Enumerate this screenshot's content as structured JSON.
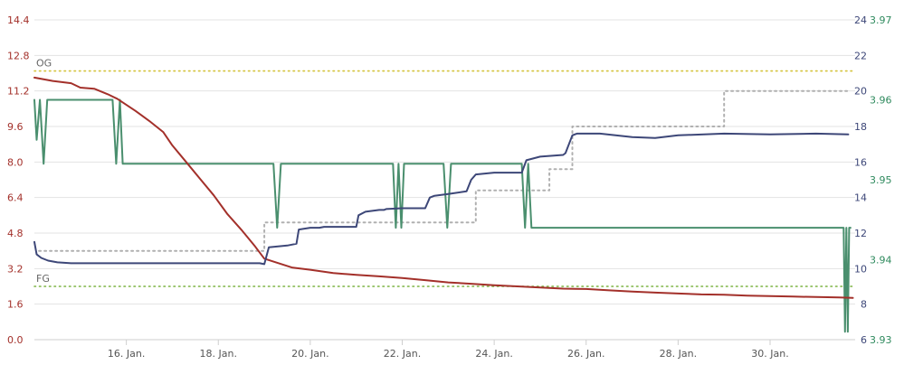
{
  "chart_data": {
    "type": "line",
    "title": "",
    "xlabel": "",
    "ylabel": "",
    "grid": true,
    "x_range": [
      14.0,
      31.85
    ],
    "x_ticks": [
      16,
      18,
      20,
      22,
      24,
      26,
      28,
      30
    ],
    "x_tick_labels": [
      "16. Jan.",
      "18. Jan.",
      "20. Jan.",
      "22. Jan.",
      "24. Jan.",
      "26. Jan.",
      "28. Jan.",
      "30. Jan."
    ],
    "axes": {
      "left": {
        "ylim": [
          0,
          14.4
        ],
        "ticks": [
          "0.0",
          "1.6",
          "3.2",
          "4.8",
          "6.4",
          "8.0",
          "9.6",
          "11.2",
          "12.8",
          "14.4"
        ],
        "color": "#a3302a"
      },
      "right_temp": {
        "ylim": [
          6,
          24
        ],
        "ticks": [
          "6",
          "8",
          "10",
          "12",
          "14",
          "16",
          "18",
          "20",
          "22",
          "24"
        ],
        "color": "#3d4778"
      },
      "right_angle": {
        "ylim": [
          3.93,
          3.97
        ],
        "ticks": [
          "3.93",
          "3.94",
          "3.95",
          "3.96",
          "3.97"
        ],
        "color": "#2f8a5e"
      }
    },
    "reference_lines": [
      {
        "label": "OG",
        "value": 12.1,
        "color": "#d4c33b"
      },
      {
        "label": "FG",
        "value": 2.4,
        "color": "#7cb342"
      }
    ],
    "series": [
      {
        "axis": "left",
        "color": "#a3302a",
        "x": [
          14.0,
          14.4,
          14.8,
          15.0,
          15.3,
          15.6,
          15.8,
          16.2,
          16.5,
          16.8,
          17.0,
          17.3,
          17.6,
          17.9,
          18.2,
          18.5,
          18.8,
          19.0,
          19.3,
          19.6,
          20.0,
          20.5,
          21.0,
          21.5,
          22.0,
          22.5,
          23.0,
          23.5,
          24.0,
          24.5,
          25.0,
          25.5,
          26.0,
          26.5,
          27.0,
          27.5,
          28.0,
          28.5,
          29.0,
          29.5,
          30.0,
          30.5,
          31.0,
          31.5,
          31.8
        ],
        "values": [
          11.8,
          11.65,
          11.55,
          11.35,
          11.3,
          11.05,
          10.85,
          10.3,
          9.85,
          9.35,
          8.75,
          8.0,
          7.25,
          6.5,
          5.65,
          4.95,
          4.2,
          3.65,
          3.45,
          3.25,
          3.15,
          3.0,
          2.92,
          2.85,
          2.78,
          2.68,
          2.58,
          2.52,
          2.45,
          2.4,
          2.35,
          2.3,
          2.28,
          2.22,
          2.17,
          2.12,
          2.08,
          2.04,
          2.02,
          1.98,
          1.96,
          1.94,
          1.92,
          1.9,
          1.88
        ]
      },
      {
        "axis": "right_temp",
        "color": "#3d4778",
        "x": [
          14.0,
          14.05,
          14.15,
          14.3,
          14.5,
          14.8,
          15.2,
          15.5,
          16.0,
          17.0,
          18.0,
          18.5,
          18.9,
          19.0,
          19.1,
          19.5,
          19.7,
          19.75,
          20.0,
          20.2,
          20.3,
          20.5,
          21.0,
          21.05,
          21.2,
          21.5,
          21.6,
          21.65,
          22.0,
          22.3,
          22.5,
          22.6,
          22.7,
          23.0,
          23.4,
          23.5,
          23.6,
          24.0,
          24.5,
          24.6,
          24.7,
          25.0,
          25.5,
          25.55,
          25.7,
          25.8,
          26.3,
          27.0,
          27.5,
          28.0,
          29.0,
          30.0,
          31.0,
          31.7
        ],
        "values": [
          11.5,
          10.8,
          10.6,
          10.45,
          10.35,
          10.3,
          10.3,
          10.3,
          10.3,
          10.3,
          10.3,
          10.3,
          10.3,
          10.25,
          11.2,
          11.3,
          11.4,
          12.2,
          12.3,
          12.3,
          12.35,
          12.35,
          12.35,
          13.0,
          13.2,
          13.3,
          13.3,
          13.35,
          13.4,
          13.4,
          13.4,
          14.0,
          14.1,
          14.2,
          14.35,
          15.0,
          15.3,
          15.4,
          15.4,
          15.4,
          16.1,
          16.3,
          16.4,
          16.5,
          17.5,
          17.6,
          17.6,
          17.4,
          17.35,
          17.5,
          17.6,
          17.55,
          17.6,
          17.55
        ]
      },
      {
        "axis": "right_temp",
        "style": "dotted",
        "color": "#b0b0b0",
        "x": [
          14.1,
          19.0,
          19.0,
          23.6,
          23.6,
          25.2,
          25.2,
          25.7,
          25.7,
          29.0,
          29.0,
          31.7
        ],
        "values": [
          11.0,
          11.0,
          12.6,
          12.6,
          14.4,
          14.4,
          15.6,
          15.6,
          18.0,
          18.0,
          20.0,
          20.0
        ]
      },
      {
        "axis": "right_angle",
        "color": "#4a8f6e",
        "x": [
          14.0,
          14.05,
          14.12,
          14.2,
          14.28,
          15.7,
          15.78,
          15.86,
          15.92,
          16.0,
          19.2,
          19.28,
          19.36,
          21.8,
          21.86,
          21.92,
          21.98,
          22.04,
          22.1,
          22.9,
          22.98,
          23.06,
          24.6,
          24.67,
          24.74,
          24.81,
          24.88,
          31.6,
          31.63,
          31.66,
          31.69,
          31.72,
          31.75
        ],
        "values": [
          3.96,
          3.955,
          3.96,
          3.952,
          3.96,
          3.96,
          3.952,
          3.96,
          3.952,
          3.952,
          3.952,
          3.944,
          3.952,
          3.952,
          3.944,
          3.952,
          3.944,
          3.952,
          3.952,
          3.952,
          3.944,
          3.952,
          3.952,
          3.944,
          3.952,
          3.944,
          3.944,
          3.944,
          3.931,
          3.944,
          3.931,
          3.944,
          3.944
        ]
      }
    ]
  }
}
